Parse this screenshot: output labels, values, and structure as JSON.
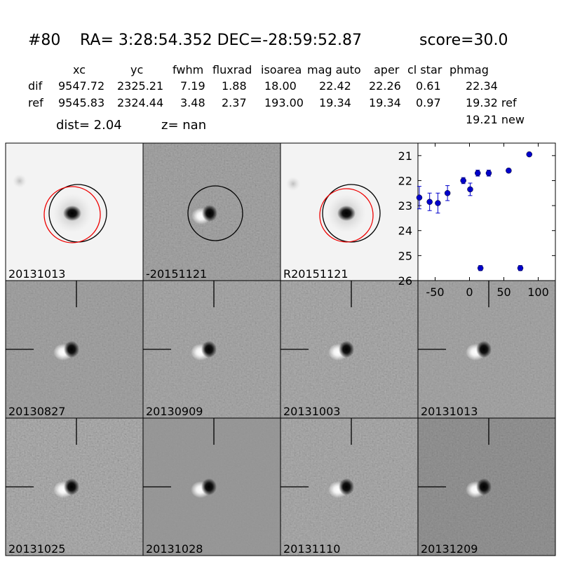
{
  "header": {
    "id": "#80",
    "coords": "RA= 3:28:54.352 DEC=-28:59:52.87",
    "score": "score=30.0"
  },
  "table": {
    "columns": [
      "xc",
      "yc",
      "fwhm",
      "fluxrad",
      "isoarea",
      "mag auto",
      "aper",
      "cl star",
      "phmag"
    ],
    "rows": [
      [
        "dif",
        "9547.72",
        "2325.21",
        "7.19",
        "1.88",
        "18.00",
        "22.42",
        "22.26",
        "0.61",
        "22.34"
      ],
      [
        "ref",
        "9545.83",
        "2324.44",
        "3.48",
        "2.37",
        "193.00",
        "19.34",
        "19.34",
        "0.97",
        "19.32 ref"
      ]
    ],
    "new_phmag": "19.21 new"
  },
  "dist": "dist=  2.04",
  "z": "z=   nan",
  "stamps": [
    {
      "label": "20131013"
    },
    {
      "label": "-20151121"
    },
    {
      "label": "R20151121"
    },
    {
      "label": "20130827"
    },
    {
      "label": "20130909"
    },
    {
      "label": "20131003"
    },
    {
      "label": "20131013",
      "color": "#ff0000"
    },
    {
      "label": "20131025"
    },
    {
      "label": "20131028"
    },
    {
      "label": "20131110"
    },
    {
      "label": "20131209"
    }
  ],
  "chart_data": {
    "type": "scatter",
    "x": [
      -73,
      -58,
      -46,
      -32,
      -9,
      1,
      12,
      28,
      57,
      87,
      16,
      74
    ],
    "values": [
      22.68,
      22.85,
      22.9,
      22.5,
      22.0,
      22.35,
      21.7,
      21.7,
      21.6,
      20.95,
      25.5,
      25.5
    ],
    "errors": [
      0.45,
      0.35,
      0.4,
      0.3,
      0.12,
      0.25,
      0.12,
      0.12,
      0.08,
      0.03,
      0.1,
      0.1
    ],
    "color": "#0000cc",
    "xlim": [
      -75,
      125
    ],
    "ylim": [
      26,
      20.5
    ],
    "xticks": [
      -50,
      0,
      50,
      100
    ],
    "yticks": [
      21,
      22,
      23,
      24,
      25,
      26
    ]
  }
}
